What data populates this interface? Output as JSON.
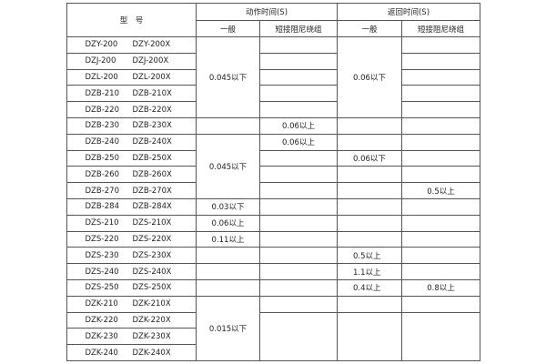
{
  "header": {
    "model": "型　号",
    "action_time": "动作时间(S)",
    "return_time": "返回时间(S)",
    "general": "一般",
    "short_damping": "短接阻尼绕组"
  },
  "models": [
    [
      "DZY-200",
      "DZY-200X"
    ],
    [
      "DZJ-200",
      "DZJ-200X"
    ],
    [
      "DZL-200",
      "DZL-200X"
    ],
    [
      "DZB-210",
      "DZB-210X"
    ],
    [
      "DZB-220",
      "DZB-220X"
    ],
    [
      "DZB-230",
      "DZB-230X"
    ],
    [
      "DZB-240",
      "DZB-240X"
    ],
    [
      "DZB-250",
      "DZB-250X"
    ],
    [
      "DZB-260",
      "DZB-260X"
    ],
    [
      "DZB-270",
      "DZB-270X"
    ],
    [
      "DZB-284",
      "DZB-284X"
    ],
    [
      "DZS-210",
      "DZS-210X"
    ],
    [
      "DZS-220",
      "DZS-220X"
    ],
    [
      "DZS-230",
      "DZS-230X"
    ],
    [
      "DZS-240",
      "DZS-240X"
    ],
    [
      "DZS-250",
      "DZS-250X"
    ],
    [
      "DZK-210",
      "DZK-210X"
    ],
    [
      "DZK-220",
      "DZK-220X"
    ],
    [
      "DZK-230",
      "DZK-230X"
    ],
    [
      "DZK-240",
      "DZK-240X"
    ]
  ],
  "action_general": [
    "0.045以下",
    "",
    "",
    "",
    "",
    "",
    "0.045以下",
    "",
    "",
    "",
    "0.03以下",
    "0.06以上",
    "0.11以上",
    "",
    "",
    "",
    "0.015以下",
    "",
    "",
    ""
  ],
  "action_short": [
    "",
    "",
    "",
    "",
    "",
    "0.06以上",
    "0.06以上",
    "",
    "",
    "",
    "",
    "",
    "",
    "",
    "",
    "",
    "",
    "",
    "",
    ""
  ],
  "return_general": [
    "0.06以下",
    "",
    "",
    "",
    "",
    "",
    "",
    "0.06以下",
    "",
    "",
    "",
    "",
    "",
    "0.5以上",
    "1.1以上",
    "0.4以上",
    "",
    "",
    "",
    ""
  ],
  "return_short": [
    "",
    "",
    "",
    "",
    "",
    "",
    "",
    "",
    "",
    "0.5以上",
    "",
    "",
    "",
    "",
    "",
    "0.8以上",
    "",
    "",
    "",
    ""
  ]
}
